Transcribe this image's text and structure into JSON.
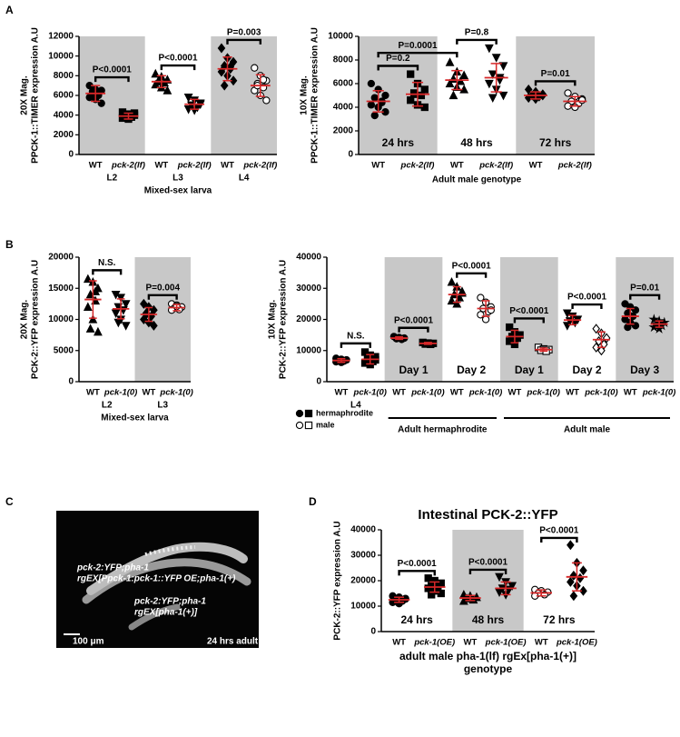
{
  "chart_data": [
    {
      "type": "dotplot",
      "panel": "A",
      "ylabel": [
        "20X Mag.",
        "PPCK-1::TIMER expression A.U"
      ],
      "xlabel": "Mixed-sex larva",
      "ylim": [
        0,
        12000
      ],
      "yticks": [
        0,
        2000,
        4000,
        6000,
        8000,
        10000,
        12000
      ],
      "point_color": "#000000",
      "error_color": "#d62728",
      "shade_color": "#c8c8c8",
      "groups": [
        {
          "name": "WT",
          "marker": "circle",
          "points": [
            7000,
            6600,
            6500,
            6200,
            6000,
            5800,
            5600,
            5200,
            6400,
            6100
          ],
          "mean": 6200,
          "sd": 800
        },
        {
          "name": "pck-2(lf)",
          "marker": "square",
          "points": [
            4300,
            4100,
            4000,
            3900,
            3800,
            3700,
            3600,
            4200,
            3900
          ],
          "mean": 3900,
          "sd": 300
        },
        {
          "name": "WT",
          "marker": "triangle",
          "points": [
            8200,
            7900,
            7600,
            7500,
            7300,
            7100,
            6800,
            6500,
            7400
          ],
          "mean": 7400,
          "sd": 600
        },
        {
          "name": "pck-2(lf)",
          "marker": "triangle-down",
          "points": [
            5800,
            5500,
            5200,
            5000,
            4800,
            4600,
            4500,
            5100
          ],
          "mean": 5100,
          "sd": 500
        },
        {
          "name": "WT",
          "marker": "diamond",
          "points": [
            10800,
            9800,
            9400,
            9000,
            8700,
            8400,
            8000,
            7500,
            7000,
            8900
          ],
          "mean": 8700,
          "sd": 1200
        },
        {
          "name": "pck-2(lf)",
          "marker": "circle-open",
          "points": [
            8800,
            8000,
            7500,
            7200,
            6800,
            6500,
            6000,
            5500,
            7000,
            7600
          ],
          "mean": 7000,
          "sd": 1100
        }
      ],
      "sections": [
        {
          "groups": [
            0,
            1
          ],
          "shaded": true,
          "sublabel": "L2"
        },
        {
          "groups": [
            2,
            3
          ],
          "shaded": false,
          "sublabel": "L3"
        },
        {
          "groups": [
            4,
            5
          ],
          "shaded": true,
          "sublabel": "L4"
        }
      ],
      "comparisons": [
        {
          "groups": [
            0,
            1
          ],
          "label": "P<0.0001"
        },
        {
          "groups": [
            2,
            3
          ],
          "label": "P<0.0001"
        },
        {
          "groups": [
            4,
            5
          ],
          "label": "P=0.003"
        }
      ]
    },
    {
      "type": "dotplot",
      "ylabel": [
        "10X Mag.",
        "PPCK-1::TIMER expression A.U"
      ],
      "xlabel": "Adult male genotype",
      "ylim": [
        0,
        10000
      ],
      "yticks": [
        0,
        2000,
        4000,
        6000,
        8000,
        10000
      ],
      "point_color": "#000000",
      "error_color": "#d62728",
      "shade_color": "#c8c8c8",
      "groups": [
        {
          "name": "WT",
          "marker": "circle",
          "points": [
            6000,
            5500,
            5000,
            4800,
            4500,
            4200,
            4000,
            3600,
            3300,
            4400
          ],
          "mean": 4500,
          "sd": 900
        },
        {
          "name": "pck-2(lf)",
          "marker": "square",
          "points": [
            6800,
            6000,
            5500,
            5200,
            5000,
            4600,
            4200,
            4000,
            5100
          ],
          "mean": 5100,
          "sd": 1000
        },
        {
          "name": "WT",
          "marker": "triangle",
          "points": [
            7800,
            7000,
            6700,
            6400,
            6200,
            6000,
            5700,
            5500,
            5000
          ],
          "mean": 6300,
          "sd": 800
        },
        {
          "name": "pck-2(lf)",
          "marker": "triangle-down",
          "points": [
            9000,
            8200,
            7500,
            6800,
            6300,
            6000,
            5500,
            5000,
            4800,
            6500
          ],
          "mean": 6500,
          "sd": 1200
        },
        {
          "name": "WT",
          "marker": "diamond",
          "points": [
            5500,
            5300,
            5100,
            5000,
            4900,
            4800,
            4700,
            5000
          ],
          "mean": 5000,
          "sd": 300
        },
        {
          "name": "pck-2(lf)",
          "marker": "circle-open",
          "points": [
            5200,
            4900,
            4700,
            4500,
            4300,
            4100,
            4000,
            4600
          ],
          "mean": 4500,
          "sd": 400
        }
      ],
      "sections": [
        {
          "groups": [
            0,
            1
          ],
          "shaded": true,
          "label": "24 hrs"
        },
        {
          "groups": [
            2,
            3
          ],
          "shaded": false,
          "label": "48 hrs"
        },
        {
          "groups": [
            4,
            5
          ],
          "shaded": true,
          "label": "72 hrs"
        }
      ],
      "comparisons": [
        {
          "groups": [
            0,
            1
          ],
          "label": "P=0.2"
        },
        {
          "groups": [
            0,
            2
          ],
          "label": "P=0.0001"
        },
        {
          "groups": [
            2,
            3
          ],
          "label": "P=0.8"
        },
        {
          "groups": [
            4,
            5
          ],
          "label": "P=0.01"
        }
      ]
    },
    {
      "type": "dotplot",
      "panel": "B",
      "ylabel": [
        "20X Mag.",
        "PCK-2::YFP expression A.U"
      ],
      "xlabel": "Mixed-sex larva",
      "ylim": [
        0,
        20000
      ],
      "yticks": [
        0,
        5000,
        10000,
        15000,
        20000
      ],
      "point_color": "#000000",
      "error_color": "#d62728",
      "shade_color": "#c8c8c8",
      "groups": [
        {
          "name": "WT",
          "marker": "triangle",
          "points": [
            16500,
            16000,
            15000,
            14000,
            13000,
            12000,
            10000,
            8000,
            8500,
            14500
          ],
          "mean": 13200,
          "sd": 3000
        },
        {
          "name": "pck-1(0)",
          "marker": "triangle-down",
          "points": [
            14000,
            13500,
            12500,
            12000,
            11500,
            11000,
            10000,
            9000,
            9500
          ],
          "mean": 11700,
          "sd": 1600
        },
        {
          "name": "WT",
          "marker": "diamond",
          "points": [
            12500,
            12000,
            11500,
            11000,
            10500,
            10000,
            9500,
            9000,
            10800
          ],
          "mean": 10800,
          "sd": 1100
        },
        {
          "name": "pck-1(0)",
          "marker": "circle-open",
          "points": [
            12500,
            12300,
            12000,
            11800,
            11600,
            11500,
            12100
          ],
          "mean": 11900,
          "sd": 500
        }
      ],
      "sections": [
        {
          "groups": [
            0,
            1
          ],
          "shaded": false,
          "sublabel": "L2"
        },
        {
          "groups": [
            2,
            3
          ],
          "shaded": true,
          "sublabel": "L3"
        }
      ],
      "comparisons": [
        {
          "groups": [
            0,
            1
          ],
          "label": "N.S."
        },
        {
          "groups": [
            2,
            3
          ],
          "label": "P=0.004"
        }
      ]
    },
    {
      "type": "dotplot",
      "ylabel": [
        "10X Mag.",
        "PCK-2::YFP expression A.U"
      ],
      "ylim": [
        0,
        40000
      ],
      "yticks": [
        0,
        10000,
        20000,
        30000,
        40000
      ],
      "point_color": "#000000",
      "error_color": "#d62728",
      "shade_color": "#c8c8c8",
      "groups": [
        {
          "name": "WT",
          "marker": "circle",
          "points": [
            7500,
            7200,
            7000,
            6800,
            6600,
            6400,
            6200
          ],
          "mean": 6800,
          "sd": 600
        },
        {
          "name": "pck-1(0)",
          "marker": "square",
          "points": [
            9500,
            8500,
            8000,
            7200,
            6500,
            6000,
            5500,
            7000
          ],
          "mean": 7200,
          "sd": 1500
        },
        {
          "name": "WT",
          "marker": "circle",
          "points": [
            14500,
            14200,
            14000,
            13800,
            13600
          ],
          "mean": 14000,
          "sd": 400
        },
        {
          "name": "pck-1(0)",
          "marker": "square",
          "points": [
            12600,
            12400,
            12300,
            12100,
            12000
          ],
          "mean": 12300,
          "sd": 300
        },
        {
          "name": "WT",
          "marker": "triangle",
          "points": [
            32000,
            30500,
            29000,
            28000,
            27000,
            26000,
            25000,
            28500
          ],
          "mean": 28000,
          "sd": 2500
        },
        {
          "name": "pck-1(0)",
          "marker": "circle-open",
          "points": [
            27000,
            25500,
            24000,
            23500,
            22500,
            21500,
            20000,
            23000
          ],
          "mean": 23500,
          "sd": 2500
        },
        {
          "name": "WT",
          "marker": "square",
          "points": [
            17500,
            16000,
            15000,
            14500,
            14000,
            13000,
            12000
          ],
          "mean": 14500,
          "sd": 2000
        },
        {
          "name": "pck-1(0)",
          "marker": "square-open",
          "points": [
            11000,
            10500,
            10300,
            10100,
            9800
          ],
          "mean": 10300,
          "sd": 500
        },
        {
          "name": "WT",
          "marker": "triangle-down",
          "points": [
            22000,
            21000,
            20000,
            19500,
            19000,
            18000
          ],
          "mean": 19800,
          "sd": 1500
        },
        {
          "name": "pck-1(0)",
          "marker": "diamond-open",
          "points": [
            17000,
            15500,
            14000,
            13000,
            12000,
            11000,
            10000
          ],
          "mean": 13500,
          "sd": 2500
        },
        {
          "name": "WT",
          "marker": "circle",
          "points": [
            25000,
            24000,
            23000,
            22000,
            21000,
            20000,
            19000,
            18000,
            17500
          ],
          "mean": 21000,
          "sd": 2500
        },
        {
          "name": "pck-1(0)",
          "marker": "star",
          "points": [
            20000,
            19500,
            19000,
            18500,
            18000,
            17500,
            17000
          ],
          "mean": 18500,
          "sd": 1000
        }
      ],
      "sections": [
        {
          "groups": [
            0,
            1
          ],
          "shaded": false,
          "sublabel": "L4"
        },
        {
          "groups": [
            2,
            3
          ],
          "shaded": true,
          "label": "Day 1"
        },
        {
          "groups": [
            4,
            5
          ],
          "shaded": false,
          "label": "Day 2"
        },
        {
          "groups": [
            6,
            7
          ],
          "shaded": true,
          "label": "Day 1"
        },
        {
          "groups": [
            8,
            9
          ],
          "shaded": false,
          "label": "Day 2"
        },
        {
          "groups": [
            10,
            11
          ],
          "shaded": true,
          "label": "Day 3"
        }
      ],
      "comparisons": [
        {
          "groups": [
            0,
            1
          ],
          "label": "N.S."
        },
        {
          "groups": [
            2,
            3
          ],
          "label": "P<0.0001"
        },
        {
          "groups": [
            4,
            5
          ],
          "label": "P<0.0001"
        },
        {
          "groups": [
            6,
            7
          ],
          "label": "P<0.0001"
        },
        {
          "groups": [
            8,
            9
          ],
          "label": "P<0.0001"
        },
        {
          "groups": [
            10,
            11
          ],
          "label": "P=0.01"
        }
      ],
      "section_groups": [
        {
          "label": "Adult hermaphrodite",
          "sections": [
            1,
            2
          ]
        },
        {
          "label": "Adult male",
          "sections": [
            3,
            5
          ]
        }
      ],
      "legend": [
        {
          "label": "hermaphrodite",
          "markers": [
            "circle",
            "square"
          ]
        },
        {
          "label": "male",
          "markers": [
            "circle-open",
            "square-open"
          ]
        }
      ]
    },
    {
      "type": "dotplot",
      "panel": "D",
      "title": "Intestinal PCK-2::YFP",
      "ylabel": [
        "PCK-2::YFP expression A.U"
      ],
      "xlabel": [
        "adult male pha-1(lf) rgEx[pha-1(+)]",
        "genotype"
      ],
      "ylim": [
        0,
        40000
      ],
      "yticks": [
        0,
        10000,
        20000,
        30000,
        40000
      ],
      "point_color": "#000000",
      "error_color": "#d62728",
      "shade_color": "#c8c8c8",
      "groups": [
        {
          "name": "WT",
          "marker": "circle",
          "points": [
            14000,
            13500,
            13000,
            12500,
            12000,
            11500,
            11000,
            12800
          ],
          "mean": 12500,
          "sd": 1000
        },
        {
          "name": "pck-1(OE)",
          "marker": "square",
          "points": [
            21000,
            20000,
            19000,
            18000,
            17500,
            17000,
            16000,
            15000,
            14500
          ],
          "mean": 17500,
          "sd": 2000
        },
        {
          "name": "WT",
          "marker": "triangle",
          "points": [
            14500,
            14000,
            13500,
            13000,
            12500,
            12000,
            13200
          ],
          "mean": 13200,
          "sd": 1000
        },
        {
          "name": "pck-1(OE)",
          "marker": "triangle-down",
          "points": [
            21500,
            19500,
            18000,
            17000,
            16500,
            15500,
            14500
          ],
          "mean": 17000,
          "sd": 2500
        },
        {
          "name": "WT",
          "marker": "circle-open",
          "points": [
            16500,
            16000,
            15500,
            15000,
            14500,
            14000
          ],
          "mean": 15200,
          "sd": 1200
        },
        {
          "name": "pck-1(OE)",
          "marker": "diamond",
          "points": [
            34000,
            27000,
            24000,
            22000,
            21000,
            19500,
            18000,
            16000,
            14000
          ],
          "mean": 21500,
          "sd": 5500
        }
      ],
      "sections": [
        {
          "groups": [
            0,
            1
          ],
          "shaded": false,
          "label": "24 hrs"
        },
        {
          "groups": [
            2,
            3
          ],
          "shaded": true,
          "label": "48 hrs"
        },
        {
          "groups": [
            4,
            5
          ],
          "shaded": false,
          "label": "72 hrs"
        }
      ],
      "comparisons": [
        {
          "groups": [
            0,
            1
          ],
          "label": "P<0.0001"
        },
        {
          "groups": [
            2,
            3
          ],
          "label": "P<0.0001"
        },
        {
          "groups": [
            4,
            5
          ],
          "label": "P<0.0001"
        }
      ]
    }
  ],
  "image_panel": {
    "panel": "C",
    "labels": [
      "pck-2:YFP;pha-1",
      "rgEX[Ppck-1:pck-1::YFP OE;pha-1(+)",
      "pck-2:YFP;pha-1",
      "rgEX[pha-1(+)]",
      "100 μm",
      "24 hrs adult"
    ]
  }
}
